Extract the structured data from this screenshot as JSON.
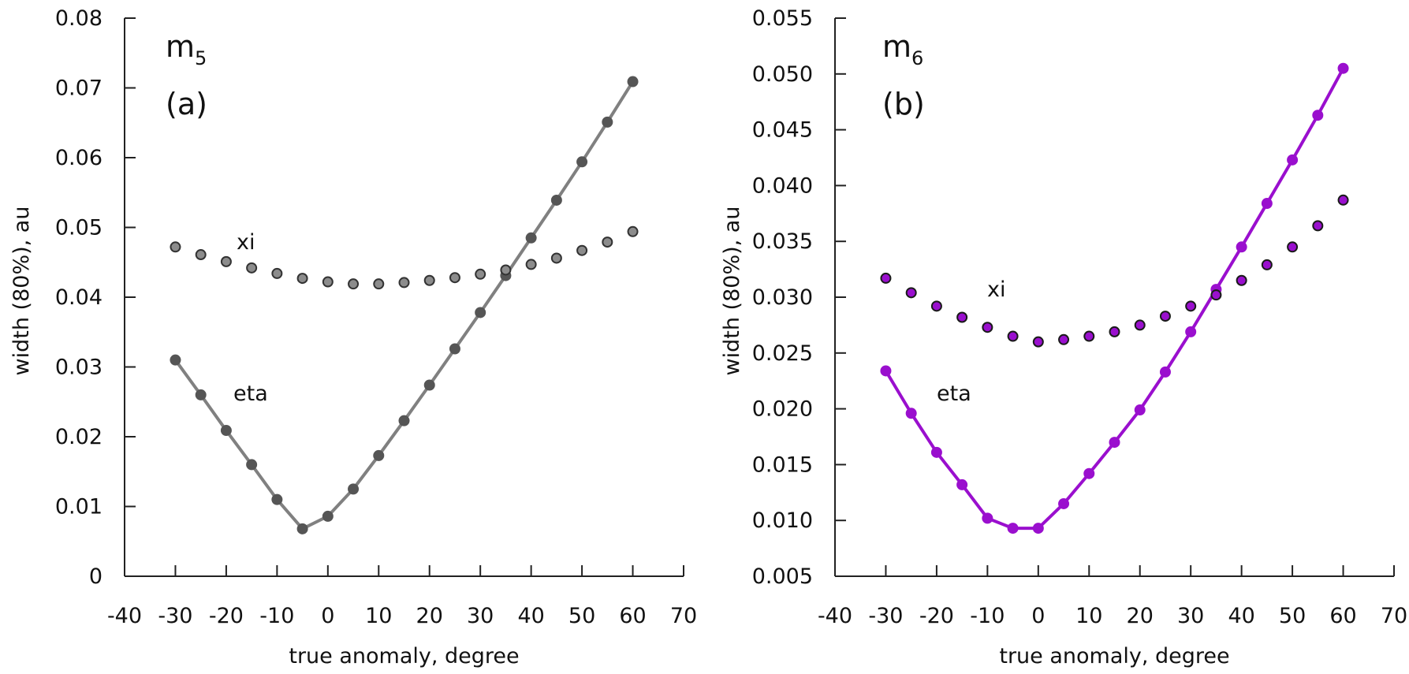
{
  "chart_data": [
    {
      "type": "line",
      "panel": "(a)",
      "title": "m",
      "title_subscript": "5",
      "title_color": "#111111",
      "xlabel": "true anomaly, degree",
      "ylabel": "width (80%), au",
      "xlim": [
        -40,
        70
      ],
      "ylim": [
        0,
        0.08
      ],
      "xticks": [
        -40,
        -30,
        -20,
        -10,
        0,
        10,
        20,
        30,
        40,
        50,
        60,
        70
      ],
      "xtick_labels": [
        "-40",
        "-30",
        "-20",
        "-10",
        "0",
        "10",
        "20",
        "30",
        "40",
        "50",
        "60",
        "70"
      ],
      "yticks": [
        0,
        0.01,
        0.02,
        0.03,
        0.04,
        0.05,
        0.06,
        0.07,
        0.08
      ],
      "ytick_labels": [
        "0",
        "0.01",
        "0.02",
        "0.03",
        "0.04",
        "0.05",
        "0.06",
        "0.07",
        "0.08"
      ],
      "x": [
        -30,
        -25,
        -20,
        -15,
        -10,
        -5,
        0,
        5,
        10,
        15,
        20,
        25,
        30,
        35,
        40,
        45,
        50,
        55,
        60
      ],
      "series": [
        {
          "name": "eta",
          "style": "line-markers",
          "line_color": "#808080",
          "marker_color": "#555555",
          "values": [
            0.031,
            0.026,
            0.0209,
            0.016,
            0.011,
            0.0068,
            0.0086,
            0.0125,
            0.0173,
            0.0223,
            0.0274,
            0.0326,
            0.0378,
            0.0431,
            0.0485,
            0.0539,
            0.0594,
            0.0651,
            0.0709
          ]
        },
        {
          "name": "xi",
          "style": "markers",
          "line_color": "none",
          "marker_color": "#8c8c8c",
          "marker_edge": "#333333",
          "values": [
            0.0472,
            0.0461,
            0.0451,
            0.0442,
            0.0434,
            0.0427,
            0.0422,
            0.0419,
            0.0419,
            0.0421,
            0.0424,
            0.0428,
            0.0433,
            0.0439,
            0.0447,
            0.0456,
            0.0467,
            0.0479,
            0.0494
          ]
        }
      ]
    },
    {
      "type": "line",
      "panel": "(b)",
      "title": "m",
      "title_subscript": "6",
      "title_color": "#9a0fce",
      "xlabel": "true anomaly, degree",
      "ylabel": "width (80%), au",
      "xlim": [
        -40,
        70
      ],
      "ylim": [
        0.005,
        0.055
      ],
      "xticks": [
        -40,
        -30,
        -20,
        -10,
        0,
        10,
        20,
        30,
        40,
        50,
        60,
        70
      ],
      "xtick_labels": [
        "-40",
        "-30",
        "-20",
        "-10",
        "0",
        "10",
        "20",
        "30",
        "40",
        "50",
        "60",
        "70"
      ],
      "yticks": [
        0.005,
        0.01,
        0.015,
        0.02,
        0.025,
        0.03,
        0.035,
        0.04,
        0.045,
        0.05,
        0.055
      ],
      "ytick_labels": [
        "0.005",
        "0.010",
        "0.015",
        "0.020",
        "0.025",
        "0.030",
        "0.035",
        "0.040",
        "0.045",
        "0.050",
        "0.055"
      ],
      "x": [
        -30,
        -25,
        -20,
        -15,
        -10,
        -5,
        0,
        5,
        10,
        15,
        20,
        25,
        30,
        35,
        40,
        45,
        50,
        55,
        60
      ],
      "series": [
        {
          "name": "eta",
          "style": "line-markers",
          "line_color": "#9a0fce",
          "marker_color": "#9a0fce",
          "values": [
            0.0234,
            0.0196,
            0.0161,
            0.0132,
            0.0102,
            0.0093,
            0.0093,
            0.0115,
            0.0142,
            0.017,
            0.0199,
            0.0233,
            0.0269,
            0.0307,
            0.0345,
            0.0384,
            0.0423,
            0.0463,
            0.0505
          ]
        },
        {
          "name": "xi",
          "style": "markers",
          "line_color": "none",
          "marker_color": "#9a0fce",
          "marker_edge": "#1a1a1a",
          "values": [
            0.0317,
            0.0304,
            0.0292,
            0.0282,
            0.0273,
            0.0265,
            0.026,
            0.0262,
            0.0265,
            0.0269,
            0.0275,
            0.0283,
            0.0292,
            0.0302,
            0.0315,
            0.0329,
            0.0345,
            0.0364,
            0.0387
          ]
        }
      ]
    }
  ]
}
